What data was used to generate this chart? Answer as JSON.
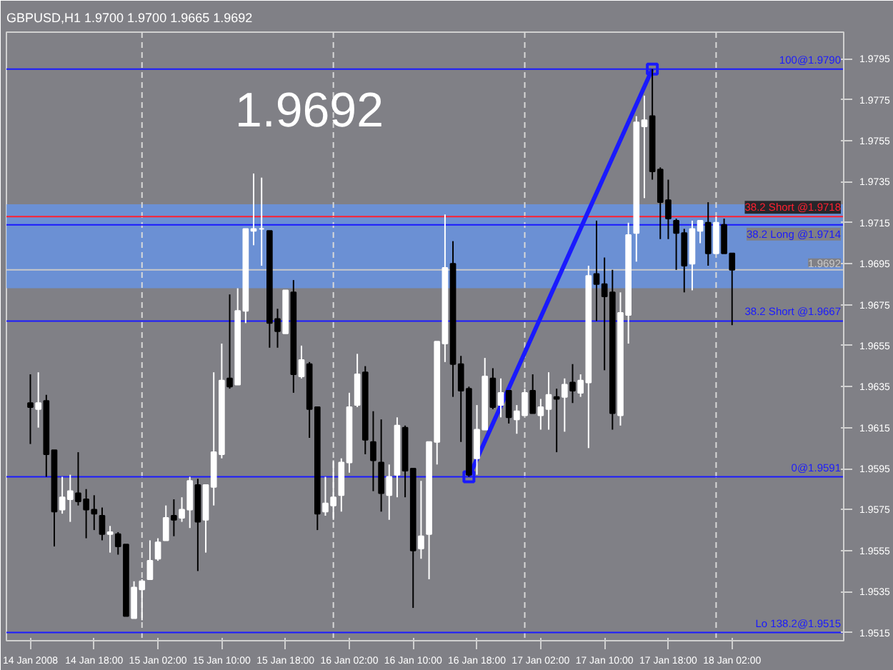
{
  "chart_data": {
    "type": "candlestick",
    "title": "GBPUSD,H1  1.9700 1.9700 1.9665 1.9692",
    "annotations": [
      "1.9692"
    ],
    "x": [
      "2008-01-14T10:00",
      "2008-01-14T11:00",
      "2008-01-14T12:00",
      "2008-01-14T13:00",
      "2008-01-14T14:00",
      "2008-01-14T15:00",
      "2008-01-14T16:00",
      "2008-01-14T17:00",
      "2008-01-14T18:00",
      "2008-01-14T19:00",
      "2008-01-14T20:00",
      "2008-01-14T21:00",
      "2008-01-14T22:00",
      "2008-01-14T23:00",
      "2008-01-15T00:00",
      "2008-01-15T01:00",
      "2008-01-15T02:00",
      "2008-01-15T03:00",
      "2008-01-15T04:00",
      "2008-01-15T05:00",
      "2008-01-15T06:00",
      "2008-01-15T07:00",
      "2008-01-15T08:00",
      "2008-01-15T09:00",
      "2008-01-15T10:00",
      "2008-01-15T11:00",
      "2008-01-15T12:00",
      "2008-01-15T13:00",
      "2008-01-15T14:00",
      "2008-01-15T15:00",
      "2008-01-15T16:00",
      "2008-01-15T17:00",
      "2008-01-15T18:00",
      "2008-01-15T19:00",
      "2008-01-15T20:00",
      "2008-01-15T21:00",
      "2008-01-15T22:00",
      "2008-01-15T23:00",
      "2008-01-16T00:00",
      "2008-01-16T01:00",
      "2008-01-16T02:00",
      "2008-01-16T03:00",
      "2008-01-16T04:00",
      "2008-01-16T05:00",
      "2008-01-16T06:00",
      "2008-01-16T07:00",
      "2008-01-16T08:00",
      "2008-01-16T09:00",
      "2008-01-16T10:00",
      "2008-01-16T11:00",
      "2008-01-16T12:00",
      "2008-01-16T13:00",
      "2008-01-16T14:00",
      "2008-01-16T15:00",
      "2008-01-16T16:00",
      "2008-01-16T17:00",
      "2008-01-16T18:00",
      "2008-01-16T19:00",
      "2008-01-16T20:00",
      "2008-01-16T21:00",
      "2008-01-16T22:00",
      "2008-01-16T23:00",
      "2008-01-17T00:00",
      "2008-01-17T01:00",
      "2008-01-17T02:00",
      "2008-01-17T03:00",
      "2008-01-17T04:00",
      "2008-01-17T05:00",
      "2008-01-17T06:00",
      "2008-01-17T07:00",
      "2008-01-17T08:00",
      "2008-01-17T09:00",
      "2008-01-17T10:00",
      "2008-01-17T11:00",
      "2008-01-17T12:00",
      "2008-01-17T13:00",
      "2008-01-17T14:00",
      "2008-01-17T15:00",
      "2008-01-17T16:00",
      "2008-01-17T17:00",
      "2008-01-17T18:00",
      "2008-01-17T19:00",
      "2008-01-17T20:00",
      "2008-01-17T21:00",
      "2008-01-17T22:00",
      "2008-01-17T23:00",
      "2008-01-18T00:00",
      "2008-01-18T01:00",
      "2008-01-18T02:00"
    ],
    "ohlc": [
      [
        1.9627,
        1.9641,
        1.9607,
        1.9625
      ],
      [
        1.9624,
        1.9642,
        1.9615,
        1.9627
      ],
      [
        1.9628,
        1.9631,
        1.9591,
        1.9602
      ],
      [
        1.9604,
        1.9604,
        1.9557,
        1.9574
      ],
      [
        1.9575,
        1.9591,
        1.9573,
        1.9581
      ],
      [
        1.958,
        1.9592,
        1.9569,
        1.9584
      ],
      [
        1.9583,
        1.9603,
        1.9577,
        1.9579
      ],
      [
        1.958,
        1.9585,
        1.9561,
        1.9575
      ],
      [
        1.9575,
        1.9582,
        1.9565,
        1.9573
      ],
      [
        1.9572,
        1.9576,
        1.956,
        1.9563
      ],
      [
        1.9563,
        1.9567,
        1.9554,
        1.9564
      ],
      [
        1.9563,
        1.9564,
        1.9553,
        1.9557
      ],
      [
        1.9558,
        1.9558,
        1.9523,
        1.9523
      ],
      [
        1.9522,
        1.954,
        1.9522,
        1.9537
      ],
      [
        1.9536,
        1.9541,
        1.9521,
        1.954
      ],
      [
        1.9541,
        1.956,
        1.9541,
        1.955
      ],
      [
        1.9551,
        1.9561,
        1.955,
        1.9559
      ],
      [
        1.956,
        1.9577,
        1.956,
        1.9571
      ],
      [
        1.9572,
        1.958,
        1.9562,
        1.957
      ],
      [
        1.9571,
        1.9581,
        1.9569,
        1.9575
      ],
      [
        1.9575,
        1.9591,
        1.9566,
        1.9589
      ],
      [
        1.9587,
        1.959,
        1.9545,
        1.9569
      ],
      [
        1.957,
        1.9587,
        1.9554,
        1.9587
      ],
      [
        1.9586,
        1.9642,
        1.9577,
        1.9603
      ],
      [
        1.9602,
        1.9656,
        1.96,
        1.9638
      ],
      [
        1.9639,
        1.968,
        1.9634,
        1.9635
      ],
      [
        1.9636,
        1.9683,
        1.9636,
        1.9672
      ],
      [
        1.9672,
        1.9712,
        1.9666,
        1.9712
      ],
      [
        1.9711,
        1.9739,
        1.9704,
        1.9712
      ],
      [
        1.9712,
        1.9737,
        1.9694,
        1.9712
      ],
      [
        1.9711,
        1.9711,
        1.9654,
        1.9666
      ],
      [
        1.9668,
        1.9673,
        1.9654,
        1.9662
      ],
      [
        1.9661,
        1.9682,
        1.9661,
        1.9682
      ],
      [
        1.9681,
        1.9687,
        1.9632,
        1.9641
      ],
      [
        1.964,
        1.9655,
        1.9639,
        1.9648
      ],
      [
        1.9646,
        1.9647,
        1.961,
        1.9624
      ],
      [
        1.9625,
        1.9625,
        1.9565,
        1.9573
      ],
      [
        1.9574,
        1.9591,
        1.9572,
        1.9578
      ],
      [
        1.9577,
        1.9599,
        1.957,
        1.9581
      ],
      [
        1.9582,
        1.96,
        1.9574,
        1.9598
      ],
      [
        1.9598,
        1.9632,
        1.9593,
        1.9625
      ],
      [
        1.9626,
        1.9651,
        1.9625,
        1.9641
      ],
      [
        1.9642,
        1.9645,
        1.9602,
        1.9609
      ],
      [
        1.9608,
        1.9623,
        1.9584,
        1.9599
      ],
      [
        1.9598,
        1.9619,
        1.9574,
        1.9583
      ],
      [
        1.9582,
        1.9597,
        1.957,
        1.9591
      ],
      [
        1.9592,
        1.962,
        1.9581,
        1.9616
      ],
      [
        1.9615,
        1.9616,
        1.9581,
        1.9594
      ],
      [
        1.9595,
        1.9595,
        1.9527,
        1.9555
      ],
      [
        1.9556,
        1.9589,
        1.9551,
        1.9562
      ],
      [
        1.9563,
        1.9608,
        1.9541,
        1.9608
      ],
      [
        1.9608,
        1.9657,
        1.9597,
        1.9657
      ],
      [
        1.9656,
        1.9719,
        1.9647,
        1.9693
      ],
      [
        1.9695,
        1.9706,
        1.963,
        1.9646
      ],
      [
        1.9646,
        1.965,
        1.9608,
        1.9633
      ],
      [
        1.9634,
        1.9635,
        1.9591,
        1.9592
      ],
      [
        1.96,
        1.9626,
        1.9592,
        1.9614
      ],
      [
        1.9614,
        1.9649,
        1.9614,
        1.964
      ],
      [
        1.9639,
        1.9644,
        1.9624,
        1.9625
      ],
      [
        1.9626,
        1.9639,
        1.962,
        1.9632
      ],
      [
        1.9633,
        1.9633,
        1.9617,
        1.962
      ],
      [
        1.9619,
        1.9626,
        1.9612,
        1.9623
      ],
      [
        1.9621,
        1.9634,
        1.9621,
        1.9632
      ],
      [
        1.9633,
        1.9641,
        1.9622,
        1.9622
      ],
      [
        1.9621,
        1.9629,
        1.9614,
        1.9625
      ],
      [
        1.9624,
        1.9642,
        1.9614,
        1.9631
      ],
      [
        1.963,
        1.9634,
        1.9603,
        1.9629
      ],
      [
        1.963,
        1.9639,
        1.9613,
        1.9636
      ],
      [
        1.9637,
        1.9646,
        1.9627,
        1.9633
      ],
      [
        1.9632,
        1.9641,
        1.963,
        1.9638
      ],
      [
        1.9637,
        1.9694,
        1.9605,
        1.9689
      ],
      [
        1.969,
        1.9716,
        1.9667,
        1.9685
      ],
      [
        1.9685,
        1.9698,
        1.9643,
        1.9679
      ],
      [
        1.9681,
        1.9692,
        1.9614,
        1.9622
      ],
      [
        1.9621,
        1.9681,
        1.9616,
        1.9671
      ],
      [
        1.967,
        1.9715,
        1.9656,
        1.9709
      ],
      [
        1.971,
        1.9767,
        1.9696,
        1.9764
      ],
      [
        1.9762,
        1.9777,
        1.9727,
        1.9765
      ],
      [
        1.9767,
        1.979,
        1.9736,
        1.974
      ],
      [
        1.9741,
        1.9742,
        1.9707,
        1.9725
      ],
      [
        1.9726,
        1.9736,
        1.9707,
        1.9717
      ],
      [
        1.9716,
        1.9717,
        1.9692,
        1.971
      ],
      [
        1.971,
        1.9712,
        1.9681,
        1.9694
      ],
      [
        1.9695,
        1.9716,
        1.9682,
        1.9712
      ],
      [
        1.9711,
        1.9716,
        1.9705,
        1.9716
      ],
      [
        1.9715,
        1.9725,
        1.9694,
        1.97
      ],
      [
        1.97,
        1.9718,
        1.97,
        1.9715
      ],
      [
        1.9714,
        1.9717,
        1.97,
        1.97
      ],
      [
        1.97,
        1.97,
        1.9665,
        1.9692
      ]
    ],
    "series": [
      {
        "type": "line",
        "x": [
          "2008-01-16T17:00",
          "2008-01-17T16:00"
        ],
        "values": [
          1.9591,
          1.979
        ],
        "color": "#1a1aff"
      }
    ],
    "marker": "square",
    "xlim": [
      "2008-01-14T07:00",
      "2008-01-18T16:00"
    ],
    "ylim": [
      1.9511,
      1.9808
    ],
    "xticks": [
      {
        "value": "2008-01-14T10:00",
        "label": "14 Jan 2008"
      },
      {
        "value": "2008-01-14T18:00",
        "label": "14 Jan 18:00"
      },
      {
        "value": "2008-01-15T02:00",
        "label": "15 Jan 02:00"
      },
      {
        "value": "2008-01-15T10:00",
        "label": "15 Jan 10:00"
      },
      {
        "value": "2008-01-15T18:00",
        "label": "15 Jan 18:00"
      },
      {
        "value": "2008-01-16T02:00",
        "label": "16 Jan 02:00"
      },
      {
        "value": "2008-01-16T10:00",
        "label": "16 Jan 10:00"
      },
      {
        "value": "2008-01-16T18:00",
        "label": "16 Jan 18:00"
      },
      {
        "value": "2008-01-17T02:00",
        "label": "17 Jan 02:00"
      },
      {
        "value": "2008-01-17T10:00",
        "label": "17 Jan 10:00"
      },
      {
        "value": "2008-01-17T18:00",
        "label": "17 Jan 18:00"
      },
      {
        "value": "2008-01-18T02:00",
        "label": "18 Jan 02:00"
      }
    ],
    "yticks": [
      1.9515,
      1.9535,
      1.9555,
      1.9575,
      1.9595,
      1.9615,
      1.9635,
      1.9655,
      1.9675,
      1.9695,
      1.9715,
      1.9735,
      1.9755,
      1.9775,
      1.9795
    ],
    "grid": false,
    "bands": [
      {
        "axis": "y",
        "from": 1.9683,
        "to": 1.9724,
        "color": "#6495ed"
      }
    ],
    "ref_lines": [
      {
        "axis": "x",
        "value": "2008-01-15T00:00",
        "color": "#d8d8d8",
        "line_style": "dashed"
      },
      {
        "axis": "x",
        "value": "2008-01-16T00:00",
        "color": "#d8d8d8",
        "line_style": "dashed"
      },
      {
        "axis": "x",
        "value": "2008-01-17T00:00",
        "color": "#d8d8d8",
        "line_style": "dashed"
      },
      {
        "axis": "x",
        "value": "2008-01-18T00:00",
        "color": "#d8d8d8",
        "line_style": "dashed"
      },
      {
        "axis": "y",
        "value": 1.979,
        "label": "100@1.9790",
        "color": "#1a1aff",
        "line_style": "solid"
      },
      {
        "axis": "y",
        "value": 1.9718,
        "label": "38.2 Short @1.9718",
        "color": "#ff2030",
        "line_style": "solid"
      },
      {
        "axis": "y",
        "value": 1.9714,
        "label": "38.2 Long @1.9714",
        "color": "#1a1aff",
        "line_style": "solid"
      },
      {
        "axis": "y",
        "value": 1.9692,
        "label": "1.9692",
        "color": "#c8c8c8",
        "line_style": "solid"
      },
      {
        "axis": "y",
        "value": 1.9667,
        "label": "38.2 Short @1.9667",
        "color": "#1a1aff",
        "line_style": "solid"
      },
      {
        "axis": "y",
        "value": 1.9591,
        "label": "0@1.9591",
        "color": "#1a1aff",
        "line_style": "solid"
      },
      {
        "axis": "y",
        "value": 1.9515,
        "label": "Lo 138.2@1.9515",
        "color": "#1a1aff",
        "line_style": "solid"
      }
    ]
  }
}
